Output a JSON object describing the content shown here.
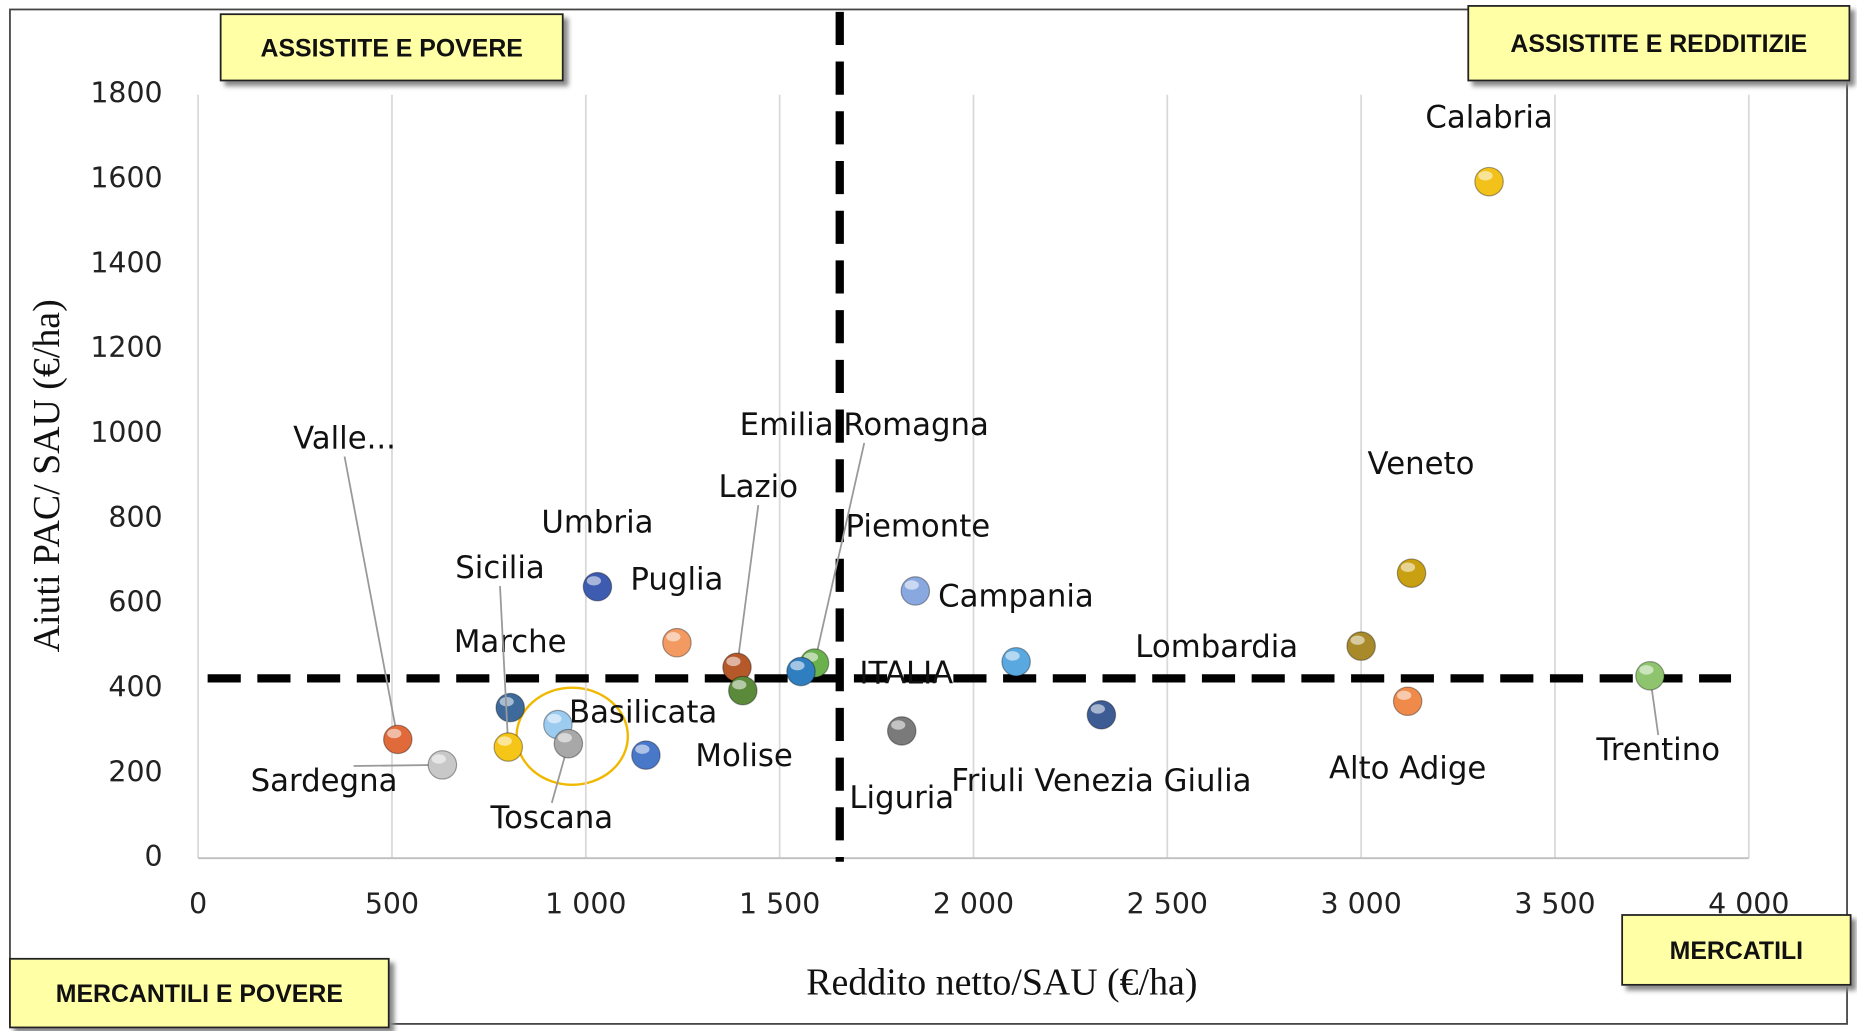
{
  "chart_data": {
    "type": "scatter",
    "xlabel": "Reddito netto/SAU (€/ha)",
    "ylabel": "Aiuti PAC/ SAU (€/ha)",
    "xlim": [
      0,
      4000
    ],
    "ylim": [
      0,
      1800
    ],
    "xticks": [
      0,
      500,
      {
        "value": 1000,
        "label": "1 000"
      },
      {
        "value": 1500,
        "label": "1 500"
      },
      {
        "value": 2000,
        "label": "2 000"
      },
      {
        "value": 2500,
        "label": "2 500"
      },
      {
        "value": 3000,
        "label": "3 000"
      },
      {
        "value": 3500,
        "label": "3 500"
      },
      {
        "value": 4000,
        "label": "4 000"
      }
    ],
    "yticks": [
      0,
      200,
      400,
      600,
      800,
      1000,
      1200,
      1400,
      1600,
      1800
    ],
    "grid": "x",
    "vline": 1655,
    "hline": 424,
    "quadrants": [
      "ASSISTITE E POVERE",
      "ASSISTITE E REDDITIZIE",
      "MERCANTILI E POVERE",
      "MERCATILI"
    ],
    "labels": [
      "Calabria",
      "Veneto",
      "Lombardia",
      "Alto Adige",
      "Trentino",
      "Friuli Venezia Giulia",
      "Campania",
      "Piemonte",
      "Liguria",
      "Emilia Romagna",
      "ITALIA",
      "Lazio",
      "Puglia",
      "Umbria",
      "Marche",
      "Sicilia",
      "Basilicata",
      "Toscana",
      "Molise",
      "Sardegna",
      "Valle...",
      null
    ],
    "x": [
      3330,
      3130,
      3000,
      3120,
      3745,
      2330,
      1850,
      2110,
      1815,
      1590,
      1555,
      1390,
      1235,
      1030,
      805,
      800,
      928,
      955,
      1155,
      630,
      515,
      1405
    ],
    "values": [
      1595,
      672,
      500,
      370,
      430,
      338,
      630,
      463,
      300,
      460,
      440,
      450,
      508,
      640,
      355,
      262,
      315,
      270,
      243,
      220,
      280,
      395
    ],
    "colors": [
      "#f2c21a",
      "#c9a012",
      "#a88a2a",
      "#f08a4a",
      "#8fc46e",
      "#3d5c94",
      "#8aa8e0",
      "#5aa8e0",
      "#7a7a7a",
      "#6ab04c",
      "#2f7fc0",
      "#b5582a",
      "#f29a62",
      "#3d5cb0",
      "#3d6a9a",
      "#f5c518",
      "#9ccbf0",
      "#a8a8a8",
      "#4a78c8",
      "#c8c8c8",
      "#e06a3a",
      "#5a8a3a"
    ]
  }
}
